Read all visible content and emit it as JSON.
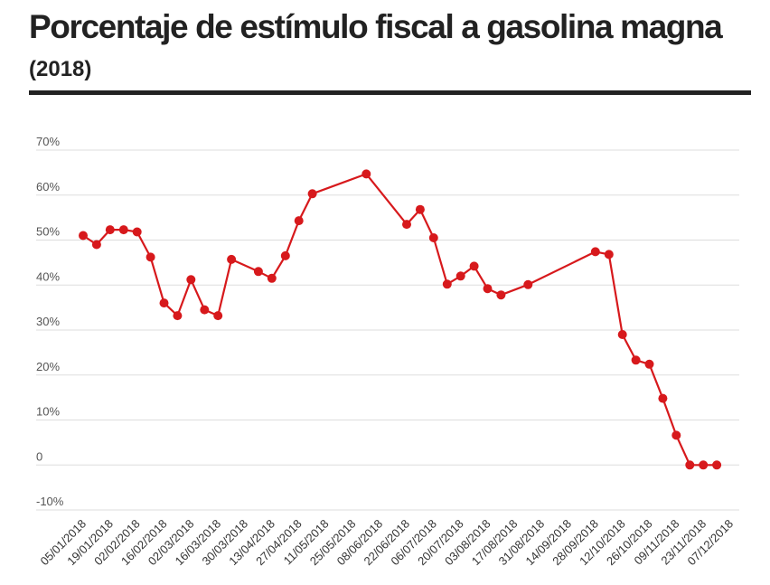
{
  "title": "Porcentaje de estímulo fiscal a gasolina magna",
  "subtitle": "(2018)",
  "colors": {
    "line": "#d7191c",
    "grid": "#dddddd",
    "rule": "#222222"
  },
  "chart_data": {
    "type": "line",
    "title": "Porcentaje de estímulo fiscal a gasolina magna",
    "subtitle": "(2018)",
    "xlabel": "",
    "ylabel": "",
    "ylim": [
      -10,
      70
    ],
    "y_ticks": [
      -10,
      0,
      10,
      20,
      30,
      40,
      50,
      60,
      70
    ],
    "y_tick_labels": [
      "-10%",
      "0",
      "10%",
      "20%",
      "30%",
      "40%",
      "50%",
      "60%",
      "70%"
    ],
    "x_tick_labels": [
      "05/01/2018",
      "19/01/2018",
      "02/02/2018",
      "16/02/2018",
      "02/03/2018",
      "16/03/2018",
      "30/03/2018",
      "13/04/2018",
      "27/04/2018",
      "11/05/2018",
      "25/05/2018",
      "08/06/2018",
      "22/06/2018",
      "06/07/2018",
      "20/07/2018",
      "03/08/2018",
      "17/08/2018",
      "31/08/2018",
      "14/09/2018",
      "28/09/2018",
      "12/10/2018",
      "26/10/2018",
      "09/11/2018",
      "23/11/2018",
      "07/12/2018"
    ],
    "grid": true,
    "legend": "none",
    "series": [
      {
        "x": [
          "05/01/2018",
          "12/01/2018",
          "19/01/2018",
          "26/01/2018",
          "02/02/2018",
          "09/02/2018",
          "16/02/2018",
          "23/02/2018",
          "02/03/2018",
          "09/03/2018",
          "16/03/2018",
          "23/03/2018",
          "06/04/2018",
          "13/04/2018",
          "20/04/2018",
          "27/04/2018",
          "04/05/2018",
          "01/06/2018",
          "22/06/2018",
          "29/06/2018",
          "06/07/2018",
          "13/07/2018",
          "20/07/2018",
          "27/07/2018",
          "03/08/2018",
          "10/08/2018",
          "24/08/2018",
          "28/09/2018",
          "05/10/2018",
          "12/10/2018",
          "19/10/2018",
          "26/10/2018",
          "02/11/2018",
          "09/11/2018",
          "16/11/2018",
          "23/11/2018",
          "30/11/2018"
        ],
        "values": [
          51,
          49,
          52.3,
          52.3,
          51.8,
          46.2,
          36,
          33.2,
          41.2,
          34.5,
          33.2,
          45.7,
          43,
          41.5,
          46.5,
          54.3,
          60.3,
          64.7,
          53.5,
          56.8,
          50.5,
          40.2,
          42,
          44.2,
          39.2,
          37.8,
          40.1,
          47.4,
          46.8,
          29,
          23.3,
          22.4,
          14.8,
          6.6,
          0,
          0,
          0
        ]
      }
    ]
  }
}
